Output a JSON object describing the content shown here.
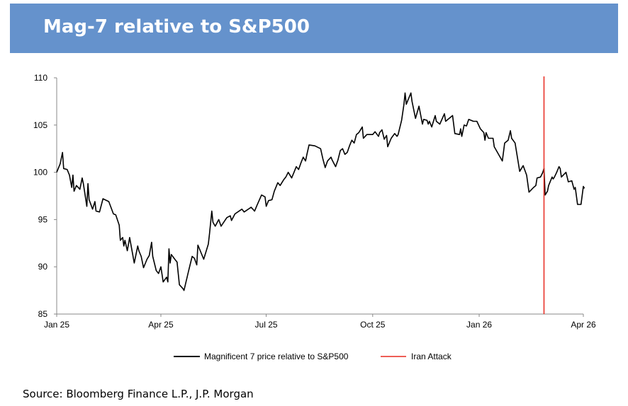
{
  "header": {
    "title": "Mag-7 relative to S&P500",
    "background": "#6592cc"
  },
  "source": "Source: Bloomberg Finance L.P., J.P. Morgan",
  "chart_data": {
    "type": "line",
    "title": "",
    "xlabel": "",
    "ylabel": "",
    "ylim": [
      85,
      110
    ],
    "yticks": [
      "85",
      "90",
      "95",
      "100",
      "105",
      "110"
    ],
    "xlim": [
      "2025-01-01",
      "2026-04-01"
    ],
    "xticks": [
      {
        "date": "2025-01-01",
        "label": "Jan 25"
      },
      {
        "date": "2025-04-01",
        "label": "Apr 25"
      },
      {
        "date": "2025-07-01",
        "label": "Jul 25"
      },
      {
        "date": "2025-10-01",
        "label": "Oct 25"
      },
      {
        "date": "2026-01-01",
        "label": "Jan 26"
      },
      {
        "date": "2026-04-01",
        "label": "Apr 26"
      }
    ],
    "grid": false,
    "legend_position": "bottom",
    "series": [
      {
        "name": "Magnificent 7 price relative to S&P500",
        "color": "#000000",
        "points": [
          [
            "2025-01-01",
            100.0
          ],
          [
            "2025-01-04",
            100.9
          ],
          [
            "2025-01-06",
            102.1
          ],
          [
            "2025-01-07",
            100.4
          ],
          [
            "2025-01-10",
            100.3
          ],
          [
            "2025-01-12",
            99.7
          ],
          [
            "2025-01-14",
            98.4
          ],
          [
            "2025-01-15",
            99.7
          ],
          [
            "2025-01-16",
            98.0
          ],
          [
            "2025-01-18",
            98.6
          ],
          [
            "2025-01-21",
            98.2
          ],
          [
            "2025-01-23",
            99.4
          ],
          [
            "2025-01-24",
            98.8
          ],
          [
            "2025-01-27",
            96.4
          ],
          [
            "2025-01-28",
            98.8
          ],
          [
            "2025-01-29",
            97.1
          ],
          [
            "2025-02-01",
            96.1
          ],
          [
            "2025-02-03",
            96.9
          ],
          [
            "2025-02-04",
            95.9
          ],
          [
            "2025-02-07",
            95.8
          ],
          [
            "2025-02-10",
            97.2
          ],
          [
            "2025-02-15",
            96.9
          ],
          [
            "2025-02-19",
            95.6
          ],
          [
            "2025-02-21",
            95.5
          ],
          [
            "2025-02-24",
            94.4
          ],
          [
            "2025-02-25",
            92.8
          ],
          [
            "2025-02-27",
            93.1
          ],
          [
            "2025-02-28",
            92.2
          ],
          [
            "2025-03-01",
            92.8
          ],
          [
            "2025-03-03",
            91.7
          ],
          [
            "2025-03-05",
            93.1
          ],
          [
            "2025-03-09",
            90.4
          ],
          [
            "2025-03-12",
            92.2
          ],
          [
            "2025-03-13",
            91.7
          ],
          [
            "2025-03-15",
            91.1
          ],
          [
            "2025-03-17",
            89.9
          ],
          [
            "2025-03-20",
            90.8
          ],
          [
            "2025-03-22",
            91.2
          ],
          [
            "2025-03-24",
            92.6
          ],
          [
            "2025-03-25",
            91.1
          ],
          [
            "2025-03-28",
            89.6
          ],
          [
            "2025-03-30",
            89.3
          ],
          [
            "2025-04-01",
            90.0
          ],
          [
            "2025-04-03",
            88.4
          ],
          [
            "2025-04-06",
            88.9
          ],
          [
            "2025-04-07",
            88.4
          ],
          [
            "2025-04-08",
            91.9
          ],
          [
            "2025-04-09",
            90.4
          ],
          [
            "2025-04-10",
            91.3
          ],
          [
            "2025-04-13",
            90.8
          ],
          [
            "2025-04-15",
            90.5
          ],
          [
            "2025-04-17",
            88.1
          ],
          [
            "2025-04-20",
            87.7
          ],
          [
            "2025-04-21",
            87.5
          ],
          [
            "2025-04-25",
            89.6
          ],
          [
            "2025-04-28",
            91.1
          ],
          [
            "2025-04-30",
            90.9
          ],
          [
            "2025-05-02",
            90.2
          ],
          [
            "2025-05-03",
            92.3
          ],
          [
            "2025-05-05",
            91.7
          ],
          [
            "2025-05-08",
            90.8
          ],
          [
            "2025-05-12",
            92.4
          ],
          [
            "2025-05-13",
            93.5
          ],
          [
            "2025-05-15",
            95.9
          ],
          [
            "2025-05-16",
            94.7
          ],
          [
            "2025-05-18",
            94.3
          ],
          [
            "2025-05-21",
            95.0
          ],
          [
            "2025-05-23",
            94.3
          ],
          [
            "2025-05-28",
            95.2
          ],
          [
            "2025-05-31",
            95.4
          ],
          [
            "2025-06-01",
            94.9
          ],
          [
            "2025-06-04",
            95.6
          ],
          [
            "2025-06-10",
            96.1
          ],
          [
            "2025-06-12",
            95.8
          ],
          [
            "2025-06-18",
            96.3
          ],
          [
            "2025-06-21",
            95.9
          ],
          [
            "2025-06-23",
            96.5
          ],
          [
            "2025-06-27",
            97.6
          ],
          [
            "2025-06-30",
            97.4
          ],
          [
            "2025-07-01",
            96.4
          ],
          [
            "2025-07-03",
            97.0
          ],
          [
            "2025-07-06",
            97.1
          ],
          [
            "2025-07-08",
            98.0
          ],
          [
            "2025-07-11",
            98.9
          ],
          [
            "2025-07-13",
            98.6
          ],
          [
            "2025-07-16",
            99.2
          ],
          [
            "2025-07-18",
            99.5
          ],
          [
            "2025-07-20",
            100.0
          ],
          [
            "2025-07-23",
            99.4
          ],
          [
            "2025-07-25",
            100.0
          ],
          [
            "2025-07-27",
            100.6
          ],
          [
            "2025-07-29",
            100.3
          ],
          [
            "2025-07-31",
            101.0
          ],
          [
            "2025-08-02",
            101.6
          ],
          [
            "2025-08-04",
            101.2
          ],
          [
            "2025-08-05",
            101.8
          ],
          [
            "2025-08-07",
            102.9
          ],
          [
            "2025-08-12",
            102.8
          ],
          [
            "2025-08-17",
            102.5
          ],
          [
            "2025-08-19",
            101.4
          ],
          [
            "2025-08-21",
            100.5
          ],
          [
            "2025-08-23",
            101.2
          ],
          [
            "2025-08-26",
            101.6
          ],
          [
            "2025-08-27",
            101.3
          ],
          [
            "2025-08-30",
            100.6
          ],
          [
            "2025-09-01",
            101.3
          ],
          [
            "2025-09-03",
            102.3
          ],
          [
            "2025-09-05",
            102.5
          ],
          [
            "2025-09-07",
            101.9
          ],
          [
            "2025-09-09",
            102.1
          ],
          [
            "2025-09-11",
            102.8
          ],
          [
            "2025-09-13",
            103.4
          ],
          [
            "2025-09-15",
            103.1
          ],
          [
            "2025-09-17",
            104.0
          ],
          [
            "2025-09-19",
            104.2
          ],
          [
            "2025-09-22",
            104.8
          ],
          [
            "2025-09-23",
            103.6
          ],
          [
            "2025-09-26",
            104.0
          ],
          [
            "2025-10-01",
            104.0
          ],
          [
            "2025-10-03",
            104.3
          ],
          [
            "2025-10-06",
            103.8
          ],
          [
            "2025-10-07",
            104.2
          ],
          [
            "2025-10-09",
            104.5
          ],
          [
            "2025-10-11",
            103.5
          ],
          [
            "2025-10-13",
            103.9
          ],
          [
            "2025-10-14",
            102.7
          ],
          [
            "2025-10-17",
            103.6
          ],
          [
            "2025-10-20",
            104.1
          ],
          [
            "2025-10-22",
            103.8
          ],
          [
            "2025-10-23",
            104.0
          ],
          [
            "2025-10-26",
            105.5
          ],
          [
            "2025-10-28",
            107.2
          ],
          [
            "2025-10-29",
            108.4
          ],
          [
            "2025-10-30",
            107.2
          ],
          [
            "2025-11-03",
            108.4
          ],
          [
            "2025-11-04",
            107.5
          ],
          [
            "2025-11-07",
            105.7
          ],
          [
            "2025-11-10",
            107.0
          ],
          [
            "2025-11-13",
            105.1
          ],
          [
            "2025-11-14",
            105.6
          ],
          [
            "2025-11-17",
            105.5
          ],
          [
            "2025-11-18",
            105.1
          ],
          [
            "2025-11-19",
            105.4
          ],
          [
            "2025-11-21",
            104.8
          ],
          [
            "2025-11-24",
            106.0
          ],
          [
            "2025-11-25",
            105.4
          ],
          [
            "2025-11-28",
            105.1
          ],
          [
            "2025-12-02",
            106.2
          ],
          [
            "2025-12-03",
            105.4
          ],
          [
            "2025-12-09",
            106.0
          ],
          [
            "2025-12-11",
            104.1
          ],
          [
            "2025-12-15",
            104.0
          ],
          [
            "2025-12-16",
            104.6
          ],
          [
            "2025-12-17",
            103.8
          ],
          [
            "2025-12-19",
            105.0
          ],
          [
            "2025-12-21",
            104.9
          ],
          [
            "2025-12-23",
            105.6
          ],
          [
            "2025-12-27",
            105.4
          ],
          [
            "2025-12-30",
            105.4
          ],
          [
            "2026-01-02",
            104.6
          ],
          [
            "2026-01-05",
            104.2
          ],
          [
            "2026-01-06",
            103.4
          ],
          [
            "2026-01-07",
            104.2
          ],
          [
            "2026-01-09",
            103.6
          ],
          [
            "2026-01-13",
            103.6
          ],
          [
            "2026-01-14",
            102.7
          ],
          [
            "2026-01-21",
            101.2
          ],
          [
            "2026-01-23",
            103.1
          ],
          [
            "2026-01-26",
            103.4
          ],
          [
            "2026-01-28",
            104.4
          ],
          [
            "2026-01-29",
            103.6
          ],
          [
            "2026-02-01",
            103.1
          ],
          [
            "2026-02-05",
            100.1
          ],
          [
            "2026-02-08",
            100.7
          ],
          [
            "2026-02-11",
            99.7
          ],
          [
            "2026-02-13",
            97.9
          ],
          [
            "2026-02-17",
            98.4
          ],
          [
            "2026-02-19",
            98.6
          ],
          [
            "2026-02-20",
            99.4
          ],
          [
            "2026-02-23",
            99.5
          ],
          [
            "2026-02-25",
            100.0
          ],
          [
            "2026-02-26",
            100.4
          ],
          [
            "2026-02-27",
            97.6
          ],
          [
            "2026-03-01",
            98.0
          ],
          [
            "2026-03-02",
            98.6
          ],
          [
            "2026-03-05",
            99.5
          ],
          [
            "2026-03-06",
            99.3
          ],
          [
            "2026-03-07",
            99.5
          ],
          [
            "2026-03-09",
            100.0
          ],
          [
            "2026-03-11",
            100.6
          ],
          [
            "2026-03-12",
            100.4
          ],
          [
            "2026-03-13",
            99.5
          ],
          [
            "2026-03-17",
            100.0
          ],
          [
            "2026-03-19",
            99.0
          ],
          [
            "2026-03-22",
            99.1
          ],
          [
            "2026-03-24",
            98.2
          ],
          [
            "2026-03-25",
            98.4
          ],
          [
            "2026-03-27",
            96.6
          ],
          [
            "2026-03-30",
            96.6
          ],
          [
            "2026-04-01",
            98.5
          ],
          [
            "2026-04-02",
            98.3
          ]
        ]
      }
    ],
    "annotations": [
      {
        "type": "vertical-line",
        "name": "Iran Attack",
        "date": "2026-02-26",
        "color": "#e8281e"
      }
    ]
  }
}
